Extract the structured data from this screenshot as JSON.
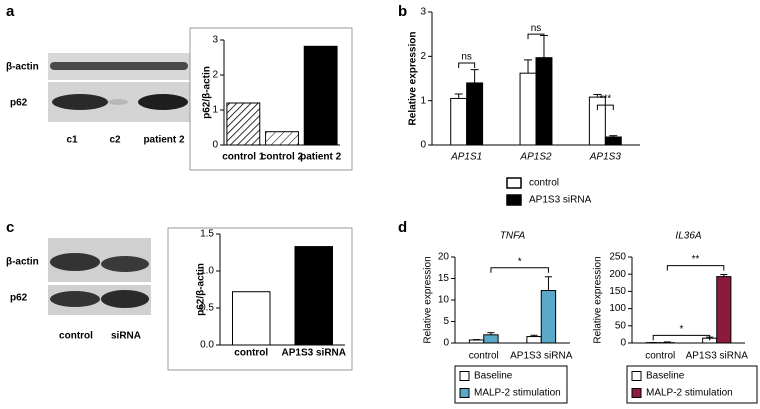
{
  "panel_labels": [
    "a",
    "b",
    "c",
    "d"
  ],
  "blots": [
    {
      "rows": [
        "β-actin",
        "p62"
      ],
      "lanes": [
        "c1",
        "c2",
        "patient 2"
      ]
    },
    {
      "rows": [
        "β-actin",
        "p62"
      ],
      "lanes": [
        "control",
        "siRNA"
      ]
    }
  ],
  "chart_data": [
    {
      "type": "bar",
      "y_label": "p62/β-actin",
      "categories": [
        "control 1",
        "control 2",
        "patient 2"
      ],
      "values": [
        1.2,
        0.38,
        2.82
      ],
      "colors": [
        "#ffffff",
        "#ffffff",
        "#000000"
      ],
      "patterns": [
        "hatch-dense",
        "hatch-sparse",
        "none"
      ],
      "ylim": [
        0,
        3
      ],
      "yticks": [
        0,
        1,
        2,
        3
      ]
    },
    {
      "type": "grouped_bar",
      "y_label": "Relative expression",
      "categories": [
        "AP1S1",
        "AP1S2",
        "AP1S3"
      ],
      "series": [
        {
          "name": "control",
          "color": "#ffffff",
          "values": [
            1.05,
            1.62,
            1.08
          ],
          "errors": [
            0.1,
            0.3,
            0.06
          ]
        },
        {
          "name": "AP1S3 siRNA",
          "color": "#000000",
          "values": [
            1.4,
            1.97,
            0.18
          ],
          "errors": [
            0.3,
            0.5,
            0.03
          ]
        }
      ],
      "annotations": [
        "ns",
        "ns",
        "***"
      ],
      "ylim": [
        0,
        3
      ],
      "yticks": [
        0,
        1,
        2,
        3
      ]
    },
    {
      "type": "bar",
      "y_label": "p62/β-actin",
      "categories": [
        "control",
        "AP1S3 siRNA"
      ],
      "values": [
        0.72,
        1.33
      ],
      "colors": [
        "#ffffff",
        "#000000"
      ],
      "patterns": [
        "none",
        "none"
      ],
      "ylim": [
        0,
        1.5
      ],
      "yticks": [
        {
          "value": 0,
          "label": "0.0"
        },
        {
          "value": 0.5,
          "label": "0.5"
        },
        {
          "value": 1,
          "label": "1.0"
        },
        {
          "value": 1.5,
          "label": "1.5"
        }
      ]
    },
    {
      "type": "grouped_bar",
      "title": "TNFA",
      "y_label": "Relative expression",
      "categories": [
        "control",
        "AP1S3 siRNA"
      ],
      "series": [
        {
          "name": "Baseline",
          "color": "#ffffff",
          "values": [
            0.7,
            1.5
          ],
          "errors": [
            0.1,
            0.3
          ]
        },
        {
          "name": "MALP-2 stimulation",
          "color": "#5aa9c9",
          "values": [
            1.9,
            12.2
          ],
          "errors": [
            0.5,
            3.2
          ]
        }
      ],
      "annotations": [
        "*"
      ],
      "ylim": [
        0,
        20
      ],
      "yticks": [
        0,
        5,
        10,
        15,
        20
      ]
    },
    {
      "type": "grouped_bar",
      "title": "IL36A",
      "y_label": "Relative expression",
      "categories": [
        "control",
        "AP1S3 siRNA"
      ],
      "series": [
        {
          "name": "Baseline",
          "color": "#ffffff",
          "values": [
            1,
            14
          ],
          "errors": [
            0.5,
            3
          ]
        },
        {
          "name": "MALP-2 stimulation",
          "color": "#8b1a3c",
          "values": [
            1,
            193
          ],
          "errors": [
            2,
            6
          ]
        }
      ],
      "annotations": [
        "*",
        "**"
      ],
      "ylim": [
        0,
        250
      ],
      "yticks": [
        0,
        50,
        100,
        150,
        200,
        250
      ]
    }
  ]
}
